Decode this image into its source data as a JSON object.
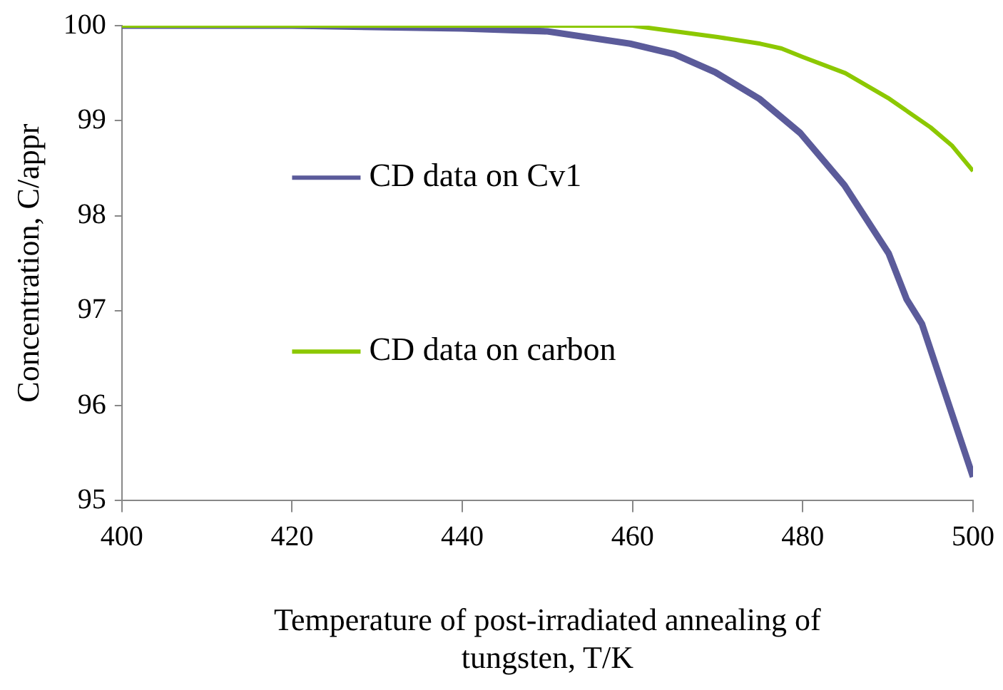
{
  "chart_data": {
    "type": "line",
    "xlabel": "Temperature of post-irradiated annealing of tungsten, T/K",
    "ylabel": "Concentration, C/appr",
    "xlim": [
      400,
      500
    ],
    "xticks": [
      400,
      420,
      440,
      460,
      480,
      500
    ],
    "ylim": [
      95,
      100
    ],
    "yticks": [
      95,
      96,
      97,
      98,
      99,
      100
    ],
    "grid": false,
    "legend": "left",
    "marker": "none",
    "line_style": "solid",
    "series": [
      {
        "name": "CD data on Cv1",
        "color": "#5b5b9a",
        "x": [
          400,
          420,
          440,
          450,
          459.7,
          464.9,
          469.7,
          474.9,
          479.7,
          484.9,
          490.1,
          492.2,
          494,
          497.2,
          500
        ],
        "values": [
          100,
          100,
          99.97,
          99.94,
          99.81,
          99.7,
          99.51,
          99.23,
          98.87,
          98.32,
          97.6,
          97.12,
          96.86,
          96,
          95.25
        ]
      },
      {
        "name": "CD data on carbon",
        "color": "#8cc800",
        "x": [
          400,
          420,
          440,
          460,
          465,
          470,
          475,
          477.5,
          480,
          485,
          490,
          495,
          497.5,
          500
        ],
        "values": [
          100,
          100,
          100,
          100,
          99.94,
          99.88,
          99.81,
          99.76,
          99.67,
          99.5,
          99.24,
          98.93,
          98.74,
          98.47
        ]
      }
    ]
  }
}
